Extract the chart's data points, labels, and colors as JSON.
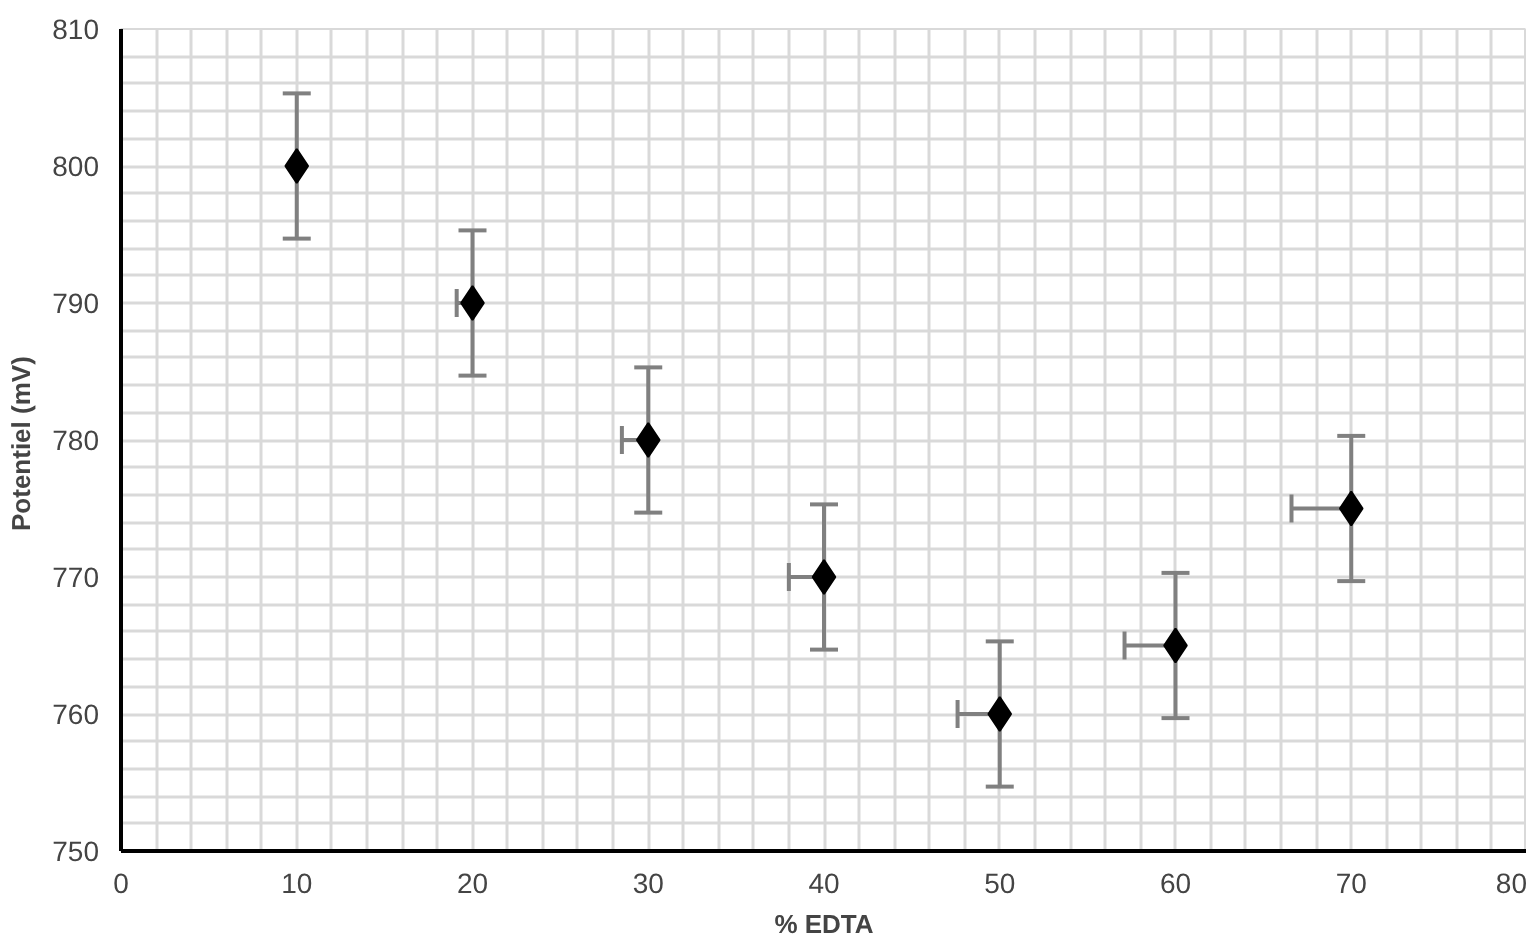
{
  "chart_data": {
    "type": "scatter",
    "xlabel": "% EDTA",
    "ylabel": "Potentiel  (mV)",
    "x": [
      10,
      20,
      30,
      40,
      50,
      60,
      70
    ],
    "series": [
      {
        "color": "#000000",
        "values": [
          800,
          790,
          780,
          770,
          760,
          765,
          775
        ],
        "errors": [
          5.3,
          5.3,
          5.3,
          5.3,
          5.3,
          5.3,
          5.3
        ],
        "xerrors": [
          null,
          [
            19.1,
            20
          ],
          [
            28.5,
            30
          ],
          [
            38,
            40
          ],
          [
            47.6,
            50
          ],
          [
            57.1,
            60
          ],
          [
            66.6,
            70
          ]
        ]
      }
    ],
    "xlim": [
      0,
      80
    ],
    "ylim": [
      750,
      810
    ],
    "xticks": [
      0,
      10,
      20,
      30,
      40,
      50,
      60,
      70,
      80
    ],
    "yticks": [
      750,
      760,
      770,
      780,
      790,
      800,
      810
    ],
    "grid": true,
    "marker": "diamond"
  }
}
